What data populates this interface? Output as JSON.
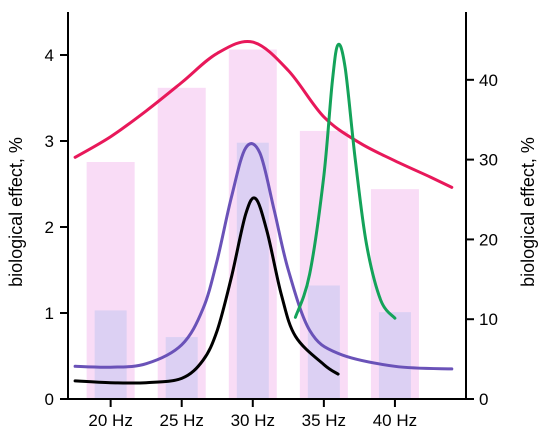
{
  "chart_data": {
    "type": "line",
    "xlabel": "",
    "left_axis": {
      "label": "biological effect, %",
      "ylim": [
        0,
        4.5
      ],
      "ticks": [
        0,
        1,
        2,
        3,
        4
      ]
    },
    "right_axis": {
      "label": "biological effect, %",
      "ylim": [
        0,
        48.5
      ],
      "ticks": [
        0,
        10,
        20,
        30,
        40
      ]
    },
    "xlim": [
      17,
      45
    ],
    "x_ticks": [
      {
        "value": 20,
        "label": "20 Hz"
      },
      {
        "value": 25,
        "label": "25 Hz"
      },
      {
        "value": 30,
        "label": "30 Hz"
      },
      {
        "value": 35,
        "label": "35 Hz"
      },
      {
        "value": 40,
        "label": "40 Hz"
      }
    ],
    "bars_right_axis": [
      {
        "x": 20,
        "value": 29.7,
        "color": "#f9dcf6"
      },
      {
        "x": 25,
        "value": 39.0,
        "color": "#f9dcf6"
      },
      {
        "x": 30,
        "value": 43.8,
        "color": "#f9dcf6"
      },
      {
        "x": 35,
        "value": 33.6,
        "color": "#f9dcf6"
      },
      {
        "x": 40,
        "value": 26.3,
        "color": "#f9dcf6"
      }
    ],
    "bars_left_axis": [
      {
        "x": 20,
        "value": 1.03,
        "color": "#dcd0f3"
      },
      {
        "x": 25,
        "value": 0.72,
        "color": "#dcd0f3"
      },
      {
        "x": 30,
        "value": 2.98,
        "color": "#dcd0f3"
      },
      {
        "x": 35,
        "value": 1.32,
        "color": "#dcd0f3"
      },
      {
        "x": 40,
        "value": 1.01,
        "color": "#dcd0f3"
      }
    ],
    "series": [
      {
        "color": "#e8185a",
        "axis": "left",
        "x": [
          17.5,
          20,
          22.5,
          25,
          27.5,
          30,
          32.5,
          35,
          37.5,
          40,
          42.5,
          44
        ],
        "values": [
          2.81,
          3.05,
          3.35,
          3.68,
          4.02,
          4.15,
          3.82,
          3.28,
          2.98,
          2.77,
          2.58,
          2.46
        ]
      },
      {
        "color": "#6a52b8",
        "axis": "left",
        "x": [
          17.5,
          20,
          22.5,
          25,
          26.5,
          27.5,
          28.5,
          29.5,
          30.5,
          31.5,
          32.5,
          34,
          36,
          40,
          44
        ],
        "values": [
          0.38,
          0.37,
          0.41,
          0.63,
          1.05,
          1.62,
          2.35,
          2.92,
          2.86,
          2.2,
          1.5,
          0.8,
          0.53,
          0.38,
          0.35
        ]
      },
      {
        "color": "#000000",
        "axis": "left",
        "x": [
          17.5,
          20,
          22.5,
          25,
          26.5,
          27.5,
          28.5,
          29.5,
          30.2,
          31,
          32,
          33,
          35,
          36
        ],
        "values": [
          0.21,
          0.19,
          0.19,
          0.24,
          0.45,
          0.8,
          1.42,
          2.15,
          2.33,
          1.95,
          1.22,
          0.73,
          0.4,
          0.29
        ]
      },
      {
        "color": "#14a35a",
        "axis": "left",
        "x": [
          33,
          34,
          35,
          35.6,
          36,
          36.5,
          37.2,
          38,
          39,
          40
        ],
        "values": [
          0.95,
          1.45,
          2.6,
          3.7,
          4.12,
          3.85,
          2.8,
          1.8,
          1.15,
          0.94
        ]
      }
    ]
  }
}
